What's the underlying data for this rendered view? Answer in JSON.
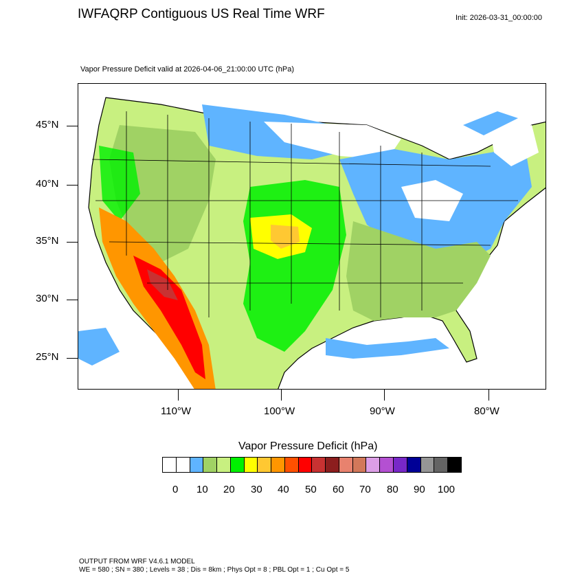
{
  "header": {
    "title": "IWFAQRP Contiguous US Real Time WRF",
    "init": "Init: 2026-03-31_00:00:00"
  },
  "map": {
    "subtitle": "Vapor Pressure Deficit valid at 2026-04-06_21:00:00 UTC   (hPa)",
    "lat_labels": [
      "45°N",
      "40°N",
      "35°N",
      "30°N",
      "25°N"
    ],
    "lon_labels": [
      "110°W",
      "100°W",
      "90°W",
      "80°W"
    ]
  },
  "colorbar": {
    "title": "Vapor Pressure Deficit  (hPa)",
    "labels": [
      "0",
      "10",
      "20",
      "30",
      "40",
      "50",
      "60",
      "70",
      "80",
      "90",
      "100"
    ],
    "colors": [
      "#ffffff",
      "#ffffff",
      "#5fb4ff",
      "#a0d264",
      "#c8f080",
      "#00f000",
      "#ffff00",
      "#ffc832",
      "#ff9600",
      "#ff5000",
      "#ff0000",
      "#c83232",
      "#8c1e1e",
      "#e8826e",
      "#d2785a",
      "#dc9ee6",
      "#b450d2",
      "#7828c8",
      "#000096",
      "#969696",
      "#646464",
      "#000000"
    ]
  },
  "footer": {
    "line1": "OUTPUT FROM WRF V4.6.1 MODEL",
    "line2": "WE = 580 ; SN = 380 ; Levels = 38 ; Dis = 8km ; Phys Opt = 8 ; PBL Opt = 1 ; Cu Opt = 5"
  },
  "legend_colors": {
    "ocean": "#ffffff",
    "low_vpd": "#5fb4ff",
    "mid_green": "#a0d264",
    "lime": "#c8f080",
    "green": "#00f000",
    "yellow": "#ffff00",
    "orange": "#ff9600",
    "red": "#ff0000"
  }
}
